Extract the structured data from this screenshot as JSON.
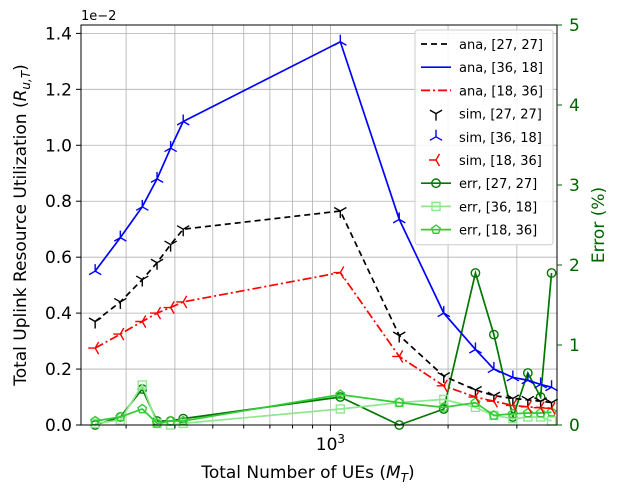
{
  "chart_data": {
    "type": "line",
    "xlabel": "Total Number of UEs (M_T)",
    "ylabel": "Total Uplink Resource Utilization (R_{u,T})",
    "y2label": "Error (%)",
    "yscale_label": "1e−2",
    "x_scale": "log",
    "xlim": [
      230,
      3800
    ],
    "ylim": [
      0,
      1.43
    ],
    "y2lim": [
      0,
      5
    ],
    "x_ticks": [
      {
        "value": 1000,
        "label": "10^3"
      }
    ],
    "y_ticks": [
      0.0,
      0.2,
      0.4,
      0.6,
      0.8,
      1.0,
      1.2,
      1.4
    ],
    "y_tick_labels": [
      "0.0",
      "0.2",
      "0.4",
      "0.6",
      "0.8",
      "1.0",
      "1.2",
      "1.4"
    ],
    "y2_ticks": [
      0,
      1,
      2,
      3,
      4,
      5
    ],
    "y2_tick_labels": [
      "0",
      "1",
      "2",
      "3",
      "4",
      "5"
    ],
    "grid": true,
    "legend_position": "top-right",
    "colors": {
      "black": "#000000",
      "blue": "#0000ff",
      "red": "#ff0000",
      "green": "#007700",
      "lightgreen": "#8fe88f",
      "limegreen": "#33cc33",
      "error_axis": "#006400"
    },
    "series": [
      {
        "name": "ana, [27, 27]",
        "axis": "left",
        "style": "ana",
        "color": "#000000",
        "dash": "6,4",
        "x": [
          250,
          290,
          330,
          360,
          390,
          420,
          1060,
          1500,
          1950,
          2350,
          2620,
          2930,
          3200,
          3450,
          3680
        ],
        "y": [
          0.37,
          0.44,
          0.52,
          0.58,
          0.645,
          0.7,
          0.765,
          0.32,
          0.175,
          0.125,
          0.105,
          0.095,
          0.09,
          0.085,
          0.08
        ]
      },
      {
        "name": "ana, [36, 18]",
        "axis": "left",
        "style": "ana",
        "color": "#0000ff",
        "dash": "",
        "x": [
          250,
          290,
          330,
          360,
          390,
          420,
          1060,
          1500,
          1950,
          2350,
          2620,
          2930,
          3200,
          3450,
          3680
        ],
        "y": [
          0.55,
          0.67,
          0.78,
          0.88,
          0.99,
          1.085,
          1.37,
          0.735,
          0.4,
          0.27,
          0.2,
          0.17,
          0.16,
          0.145,
          0.135
        ]
      },
      {
        "name": "ana, [18, 36]",
        "axis": "left",
        "style": "ana",
        "color": "#ff0000",
        "dash": "9,3,2,3",
        "x": [
          250,
          290,
          330,
          360,
          390,
          420,
          1060,
          1500,
          1950,
          2350,
          2620,
          2930,
          3200,
          3450,
          3680
        ],
        "y": [
          0.275,
          0.325,
          0.37,
          0.4,
          0.42,
          0.44,
          0.545,
          0.245,
          0.14,
          0.1,
          0.085,
          0.07,
          0.065,
          0.062,
          0.06
        ]
      },
      {
        "name": "sim, [27, 27]",
        "axis": "left",
        "style": "sim",
        "color": "#000000",
        "marker": "tri_down",
        "x": [
          250,
          290,
          330,
          360,
          390,
          420,
          1060,
          1500,
          1950,
          2350,
          2620,
          2930,
          3200,
          3450,
          3680
        ],
        "y": [
          0.37,
          0.44,
          0.52,
          0.58,
          0.645,
          0.7,
          0.765,
          0.32,
          0.175,
          0.125,
          0.105,
          0.095,
          0.09,
          0.085,
          0.08
        ]
      },
      {
        "name": "sim, [36, 18]",
        "axis": "left",
        "style": "sim",
        "color": "#0000ff",
        "marker": "tri_up",
        "x": [
          250,
          290,
          330,
          360,
          390,
          420,
          1060,
          1500,
          1950,
          2350,
          2620,
          2930,
          3200,
          3450,
          3680
        ],
        "y": [
          0.55,
          0.67,
          0.78,
          0.88,
          0.99,
          1.085,
          1.37,
          0.735,
          0.4,
          0.27,
          0.2,
          0.17,
          0.16,
          0.145,
          0.135
        ]
      },
      {
        "name": "sim, [18, 36]",
        "axis": "left",
        "style": "sim",
        "color": "#ff0000",
        "marker": "tri_left",
        "x": [
          250,
          290,
          330,
          360,
          390,
          420,
          1060,
          1500,
          1950,
          2350,
          2620,
          2930,
          3200,
          3450,
          3680
        ],
        "y": [
          0.275,
          0.325,
          0.37,
          0.4,
          0.42,
          0.44,
          0.545,
          0.245,
          0.14,
          0.1,
          0.085,
          0.07,
          0.065,
          0.062,
          0.06
        ]
      },
      {
        "name": "err, [27, 27]",
        "axis": "right",
        "style": "err",
        "color": "#007700",
        "marker": "circle",
        "x": [
          250,
          290,
          330,
          360,
          390,
          420,
          1060,
          1500,
          1950,
          2350,
          2620,
          2930,
          3200,
          3450,
          3680
        ],
        "y": [
          0.0,
          0.1,
          0.45,
          0.05,
          0.05,
          0.08,
          0.35,
          0.0,
          0.2,
          1.9,
          1.13,
          0.1,
          0.65,
          0.35,
          1.9
        ]
      },
      {
        "name": "err, [36, 18]",
        "axis": "right",
        "style": "err",
        "color": "#8fe88f",
        "marker": "square",
        "x": [
          250,
          290,
          330,
          360,
          390,
          420,
          1060,
          1500,
          1950,
          2350,
          2620,
          2930,
          3200,
          3450,
          3680
        ],
        "y": [
          0.02,
          0.06,
          0.5,
          0.02,
          0.0,
          0.02,
          0.2,
          0.28,
          0.32,
          0.22,
          0.12,
          0.08,
          0.1,
          0.1,
          0.05
        ]
      },
      {
        "name": "err, [18, 36]",
        "axis": "right",
        "style": "err",
        "color": "#33cc33",
        "marker": "pentagon",
        "x": [
          250,
          290,
          330,
          360,
          390,
          420,
          1060,
          1500,
          1950,
          2350,
          2620,
          2930,
          3200,
          3450,
          3680
        ],
        "y": [
          0.05,
          0.1,
          0.2,
          0.02,
          0.05,
          0.05,
          0.38,
          0.28,
          0.22,
          0.28,
          0.12,
          0.14,
          0.15,
          0.15,
          0.16
        ]
      }
    ]
  }
}
